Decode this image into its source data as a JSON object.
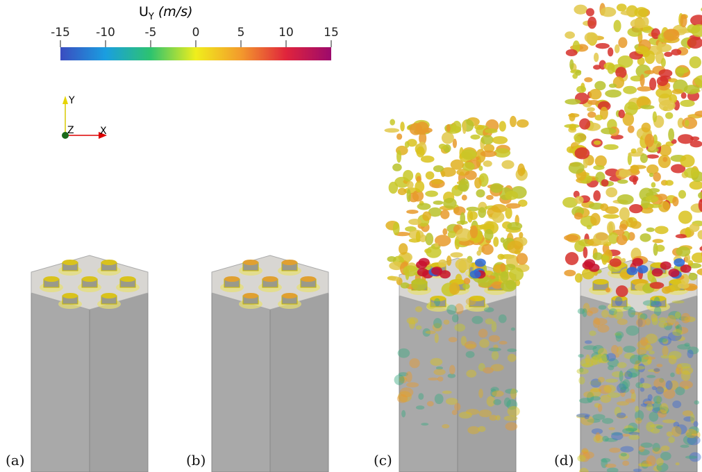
{
  "colorbar": {
    "title": "U",
    "title_sub": "Y",
    "title_unit": "(m/s)",
    "ticks": [
      {
        "value": -15,
        "label": "-15"
      },
      {
        "value": -10,
        "label": "-10"
      },
      {
        "value": -5,
        "label": "-5"
      },
      {
        "value": 0,
        "label": "0"
      },
      {
        "value": 5,
        "label": "5"
      },
      {
        "value": 10,
        "label": "10"
      },
      {
        "value": 15,
        "label": "15"
      }
    ],
    "colors": [
      "#3a4cc0",
      "#1a9ee0",
      "#2dc36f",
      "#f0ee1c",
      "#f39a2c",
      "#e0243c",
      "#9c0a6c"
    ]
  },
  "axes": {
    "y": "Y",
    "z": "Z",
    "x": "X"
  },
  "panels": [
    {
      "label": "(a)"
    },
    {
      "label": "(b)"
    },
    {
      "label": "(c)"
    },
    {
      "label": "(d)"
    }
  ]
}
